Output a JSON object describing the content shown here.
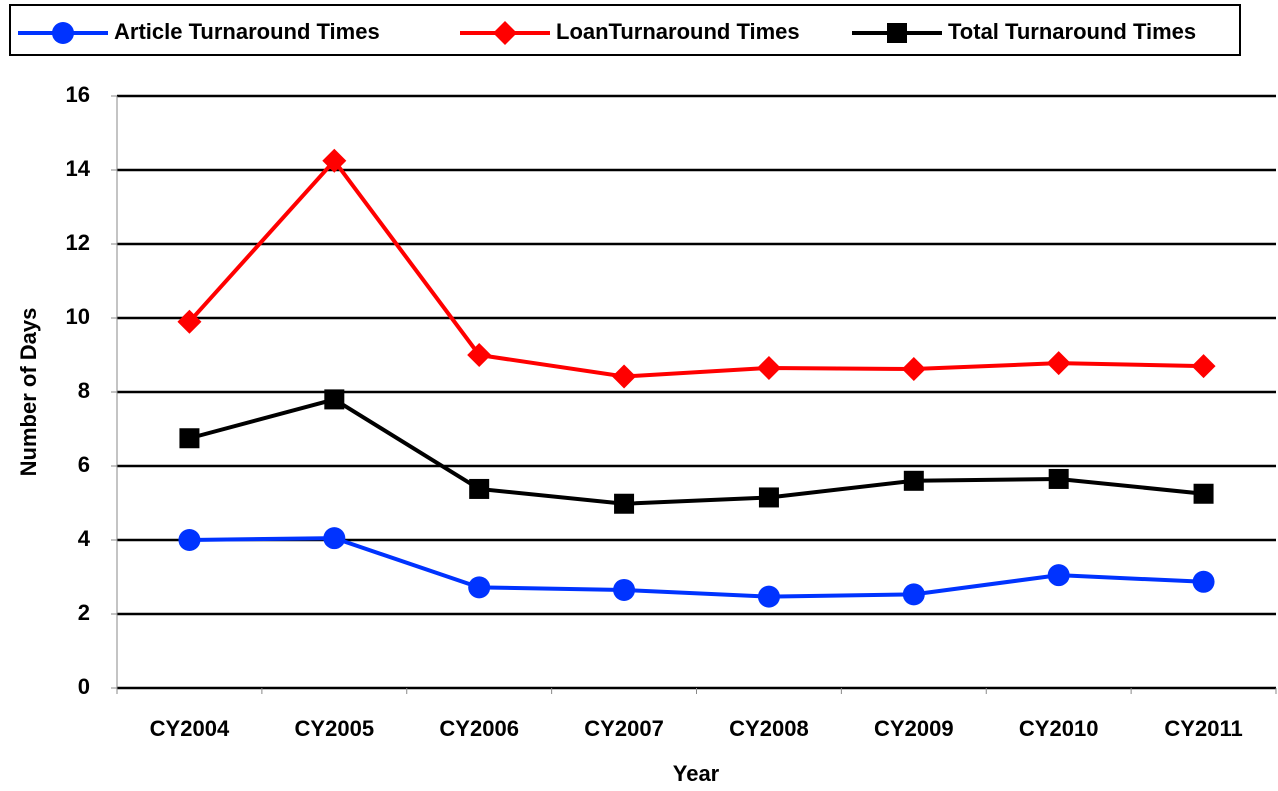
{
  "chart_data": {
    "type": "line",
    "x_label": "Year",
    "y_label": "Number of Days",
    "categories": [
      "CY2004",
      "CY2005",
      "CY2006",
      "CY2007",
      "CY2008",
      "CY2009",
      "CY2010",
      "CY2011"
    ],
    "series": [
      {
        "name": "Article Turnaround Times",
        "color": "#0033ff",
        "marker": "circle",
        "values": [
          4.0,
          4.05,
          2.72,
          2.65,
          2.47,
          2.53,
          3.05,
          2.87
        ]
      },
      {
        "name": "LoanTurnaround Times",
        "color": "#ff0000",
        "marker": "diamond",
        "values": [
          9.9,
          14.25,
          9.0,
          8.42,
          8.65,
          8.62,
          8.78,
          8.7
        ]
      },
      {
        "name": "Total Turnaround Times",
        "color": "#000000",
        "marker": "square",
        "values": [
          6.75,
          7.8,
          5.38,
          4.98,
          5.15,
          5.6,
          5.65,
          5.25
        ]
      }
    ],
    "ylim": [
      0,
      16
    ],
    "yticks": [
      0,
      2,
      4,
      6,
      8,
      10,
      12,
      14,
      16
    ],
    "grid": true,
    "legend": "top"
  }
}
